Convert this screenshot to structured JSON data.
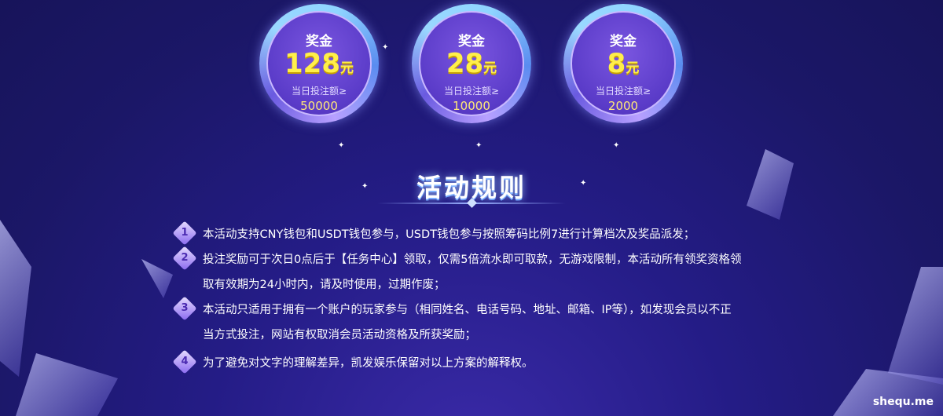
{
  "prizes": [
    {
      "label": "奖金",
      "amount": "128",
      "unit": "元",
      "condition": "当日投注额≥",
      "threshold": "50000"
    },
    {
      "label": "奖金",
      "amount": "28",
      "unit": "元",
      "condition": "当日投注额≥",
      "threshold": "10000"
    },
    {
      "label": "奖金",
      "amount": "8",
      "unit": "元",
      "condition": "当日投注额≥",
      "threshold": "2000"
    }
  ],
  "rules_title": "活动规则",
  "rules": [
    {
      "num": "1",
      "lines": [
        "本活动支持CNY钱包和USDT钱包参与，USDT钱包参与按照筹码比例7进行计算档次及奖品派发；"
      ]
    },
    {
      "num": "2",
      "lines": [
        "投注奖励可于次日0点后于【任务中心】领取，仅需5倍流水即可取款，无游戏限制，本活动所有领奖资格领",
        "取有效期为24小时内，请及时使用，过期作废；"
      ]
    },
    {
      "num": "3",
      "lines": [
        "本活动只适用于拥有一个账户的玩家参与（相同姓名、电话号码、地址、邮箱、IP等），如发现会员以不正",
        "当方式投注，网站有权取消会员活动资格及所获奖励；"
      ]
    },
    {
      "num": "4",
      "lines": [
        "为了避免对文字的理解差异，凯发娱乐保留对以上方案的解释权。"
      ]
    }
  ],
  "watermark": "shequ.me",
  "colors": {
    "background": "#1e1a6e",
    "prize_amount": "#ffef4a",
    "accent": "#8fd4ff"
  }
}
